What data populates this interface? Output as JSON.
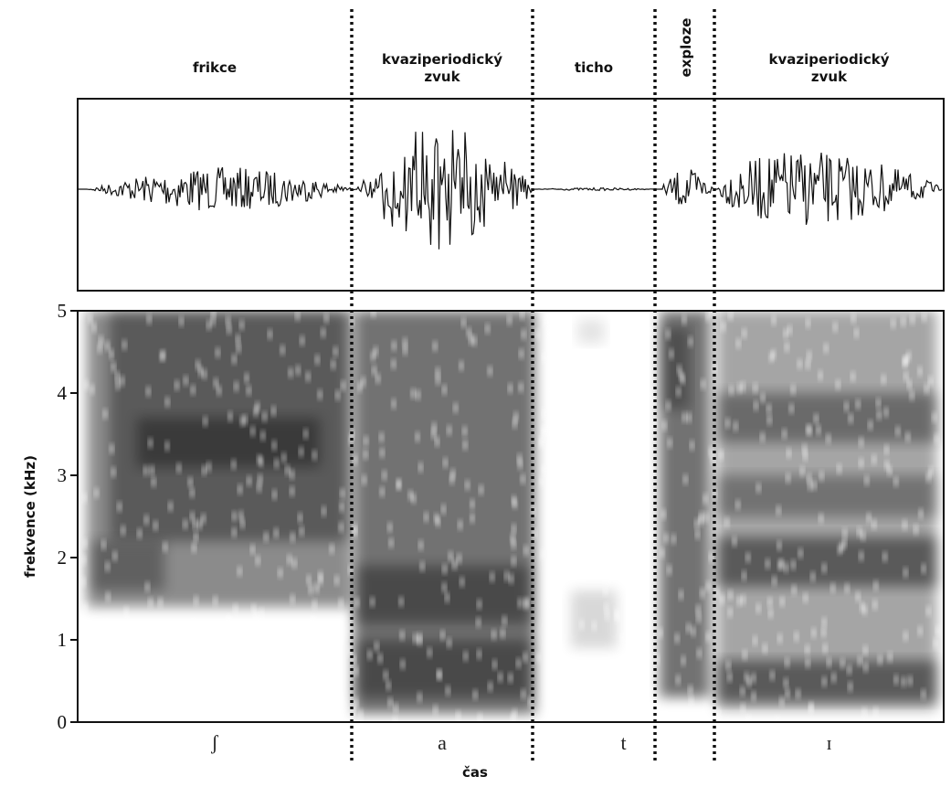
{
  "chart_data": {
    "type": "spectrogram",
    "ylabel": "frekvence (kHz)",
    "xlabel": "čas",
    "ylim": [
      0,
      5
    ],
    "yticks": [
      0,
      1,
      2,
      3,
      4,
      5
    ],
    "segments": [
      {
        "lines": [
          "frikce"
        ]
      },
      {
        "lines": [
          "kvaziperiodický",
          "zvuk"
        ]
      },
      {
        "lines": [
          "ticho"
        ]
      },
      {
        "lines": [
          "exploze"
        ]
      },
      {
        "lines": [
          "kvaziperiodický",
          "zvuk"
        ]
      }
    ],
    "phonemes": [
      {
        "label": "ʃ"
      },
      {
        "label": "a"
      },
      {
        "label": "t"
      },
      {
        "label": "ɪ"
      }
    ]
  }
}
